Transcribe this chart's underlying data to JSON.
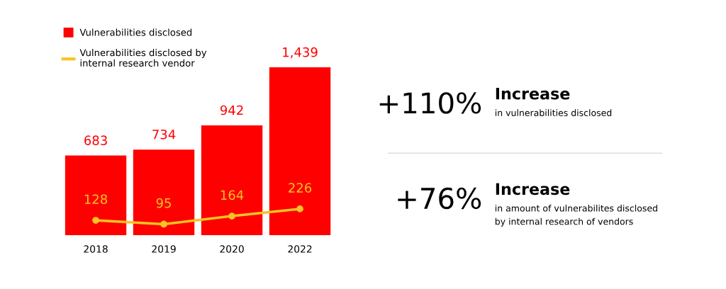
{
  "chart_data": [
    {
      "type": "bar",
      "categories": [
        "2018",
        "2019",
        "2020",
        "2022"
      ],
      "series": [
        {
          "name": "Vulnerabilities disclosed",
          "type": "bar",
          "color": "#ff0000",
          "values": [
            683,
            734,
            942,
            1439
          ],
          "value_labels": [
            "683",
            "734",
            "942",
            "1,439"
          ]
        },
        {
          "name": "Vulnerabilities disclosed by\ninternal research vendor",
          "type": "line",
          "color": "#f7c325",
          "values": [
            128,
            95,
            164,
            226
          ],
          "marker": "circle",
          "line_style": "solid"
        }
      ],
      "data_labels": true,
      "legend": "top left",
      "grid": false,
      "tick_labels": "x"
    },
    {
      "type": "other",
      "annotations": [
        "+110%",
        "Increase",
        "in vulnerabilities disclosed",
        "+76%",
        "Increase",
        "in amount of vulnerabilites disclosed\nby internal research of vendors"
      ]
    }
  ]
}
